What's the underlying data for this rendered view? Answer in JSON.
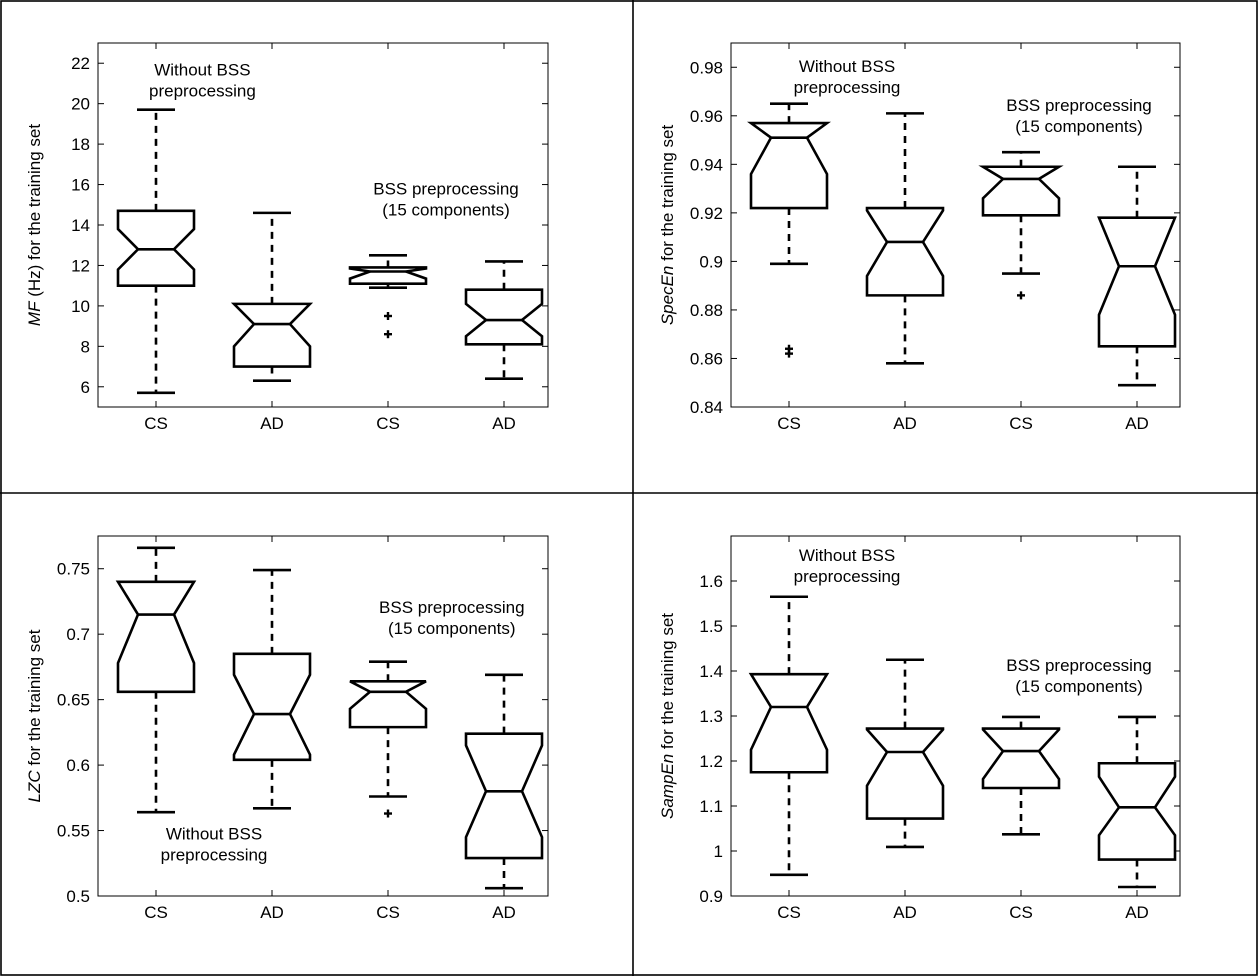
{
  "chart_data": [
    {
      "type": "box",
      "title": "",
      "ylabel": "MF (Hz) for the training set",
      "ylabel_italic": "MF",
      "ylabel_rest": " (Hz) for the training set",
      "ylim": [
        5,
        23
      ],
      "yticks": [
        6,
        8,
        10,
        12,
        14,
        16,
        18,
        20,
        22
      ],
      "categories": [
        "CS",
        "AD",
        "CS",
        "AD"
      ],
      "boxes": [
        {
          "whisker_low": 5.7,
          "q1": 11.0,
          "notch_low": 11.8,
          "median": 12.8,
          "notch_high": 13.8,
          "q3": 14.7,
          "whisker_high": 19.7,
          "outliers": []
        },
        {
          "whisker_low": 6.3,
          "q1": 7.0,
          "notch_low": 8.0,
          "median": 9.1,
          "notch_high": 10.1,
          "q3": 10.1,
          "whisker_high": 14.6,
          "outliers": []
        },
        {
          "whisker_low": 10.9,
          "q1": 11.1,
          "notch_low": 11.35,
          "median": 11.7,
          "notch_high": 11.85,
          "q3": 11.9,
          "whisker_high": 12.5,
          "outliers": [
            9.5,
            8.6
          ]
        },
        {
          "whisker_low": 6.4,
          "q1": 8.1,
          "notch_low": 8.5,
          "median": 9.3,
          "notch_high": 10.1,
          "q3": 10.8,
          "whisker_high": 12.2,
          "outliers": []
        }
      ],
      "annotations": [
        {
          "lines": [
            "Without BSS",
            "preprocessing"
          ],
          "x": 1.4,
          "y": 21.4
        },
        {
          "lines": [
            "BSS preprocessing",
            "(15 components)"
          ],
          "x": 3.5,
          "y": 15.5
        }
      ]
    },
    {
      "type": "box",
      "title": "",
      "ylabel": "SpecEn for the training set",
      "ylabel_italic": "SpecEn",
      "ylabel_rest": " for the training set",
      "ylim": [
        0.84,
        0.99
      ],
      "yticks": [
        0.84,
        0.86,
        0.88,
        0.9,
        0.92,
        0.94,
        0.96,
        0.98
      ],
      "categories": [
        "CS",
        "AD",
        "CS",
        "AD"
      ],
      "boxes": [
        {
          "whisker_low": 0.899,
          "q1": 0.922,
          "notch_low": 0.936,
          "median": 0.951,
          "notch_high": 0.957,
          "q3": 0.957,
          "whisker_high": 0.965,
          "outliers": [
            0.864,
            0.862
          ]
        },
        {
          "whisker_low": 0.858,
          "q1": 0.886,
          "notch_low": 0.894,
          "median": 0.908,
          "notch_high": 0.921,
          "q3": 0.922,
          "whisker_high": 0.961,
          "outliers": []
        },
        {
          "whisker_low": 0.895,
          "q1": 0.919,
          "notch_low": 0.926,
          "median": 0.934,
          "notch_high": 0.939,
          "q3": 0.939,
          "whisker_high": 0.945,
          "outliers": [
            0.886
          ]
        },
        {
          "whisker_low": 0.849,
          "q1": 0.865,
          "notch_low": 0.878,
          "median": 0.898,
          "notch_high": 0.918,
          "q3": 0.918,
          "whisker_high": 0.939,
          "outliers": []
        }
      ],
      "annotations": [
        {
          "lines": [
            "Without BSS",
            "preprocessing"
          ],
          "x": 1.5,
          "y": 0.978
        },
        {
          "lines": [
            "BSS preprocessing",
            "(15 components)"
          ],
          "x": 3.5,
          "y": 0.962
        }
      ]
    },
    {
      "type": "box",
      "title": "",
      "ylabel": "LZC for the training set",
      "ylabel_italic": "LZC",
      "ylabel_rest": " for the training set",
      "ylim": [
        0.5,
        0.775
      ],
      "yticks": [
        0.5,
        0.55,
        0.6,
        0.65,
        0.7,
        0.75
      ],
      "categories": [
        "CS",
        "AD",
        "CS",
        "AD"
      ],
      "boxes": [
        {
          "whisker_low": 0.564,
          "q1": 0.656,
          "notch_low": 0.678,
          "median": 0.715,
          "notch_high": 0.74,
          "q3": 0.74,
          "whisker_high": 0.766,
          "outliers": []
        },
        {
          "whisker_low": 0.567,
          "q1": 0.604,
          "notch_low": 0.608,
          "median": 0.639,
          "notch_high": 0.669,
          "q3": 0.685,
          "whisker_high": 0.749,
          "outliers": []
        },
        {
          "whisker_low": 0.576,
          "q1": 0.629,
          "notch_low": 0.643,
          "median": 0.656,
          "notch_high": 0.664,
          "q3": 0.664,
          "whisker_high": 0.679,
          "outliers": [
            0.563
          ]
        },
        {
          "whisker_low": 0.506,
          "q1": 0.529,
          "notch_low": 0.545,
          "median": 0.58,
          "notch_high": 0.615,
          "q3": 0.624,
          "whisker_high": 0.669,
          "outliers": []
        }
      ],
      "annotations": [
        {
          "lines": [
            "BSS preprocessing",
            "(15 components)"
          ],
          "x": 3.55,
          "y": 0.716
        },
        {
          "lines": [
            "Without BSS",
            "preprocessing"
          ],
          "x": 1.5,
          "y": 0.543
        }
      ]
    },
    {
      "type": "box",
      "title": "",
      "ylabel": "SampEn for the training set",
      "ylabel_italic": "SampEn",
      "ylabel_rest": " for the training set",
      "ylim": [
        0.9,
        1.7
      ],
      "yticks": [
        0.9,
        1.0,
        1.1,
        1.2,
        1.3,
        1.4,
        1.5,
        1.6
      ],
      "categories": [
        "CS",
        "AD",
        "CS",
        "AD"
      ],
      "boxes": [
        {
          "whisker_low": 0.947,
          "q1": 1.175,
          "notch_low": 1.225,
          "median": 1.32,
          "notch_high": 1.393,
          "q3": 1.393,
          "whisker_high": 1.565,
          "outliers": []
        },
        {
          "whisker_low": 1.009,
          "q1": 1.072,
          "notch_low": 1.145,
          "median": 1.22,
          "notch_high": 1.27,
          "q3": 1.272,
          "whisker_high": 1.425,
          "outliers": []
        },
        {
          "whisker_low": 1.037,
          "q1": 1.14,
          "notch_low": 1.16,
          "median": 1.222,
          "notch_high": 1.27,
          "q3": 1.272,
          "whisker_high": 1.298,
          "outliers": []
        },
        {
          "whisker_low": 0.92,
          "q1": 0.981,
          "notch_low": 1.035,
          "median": 1.097,
          "notch_high": 1.165,
          "q3": 1.195,
          "whisker_high": 1.298,
          "outliers": []
        }
      ],
      "annotations": [
        {
          "lines": [
            "Without BSS",
            "preprocessing"
          ],
          "x": 1.5,
          "y": 1.645
        },
        {
          "lines": [
            "BSS preprocessing",
            "(15 components)"
          ],
          "x": 3.5,
          "y": 1.4
        }
      ]
    }
  ]
}
